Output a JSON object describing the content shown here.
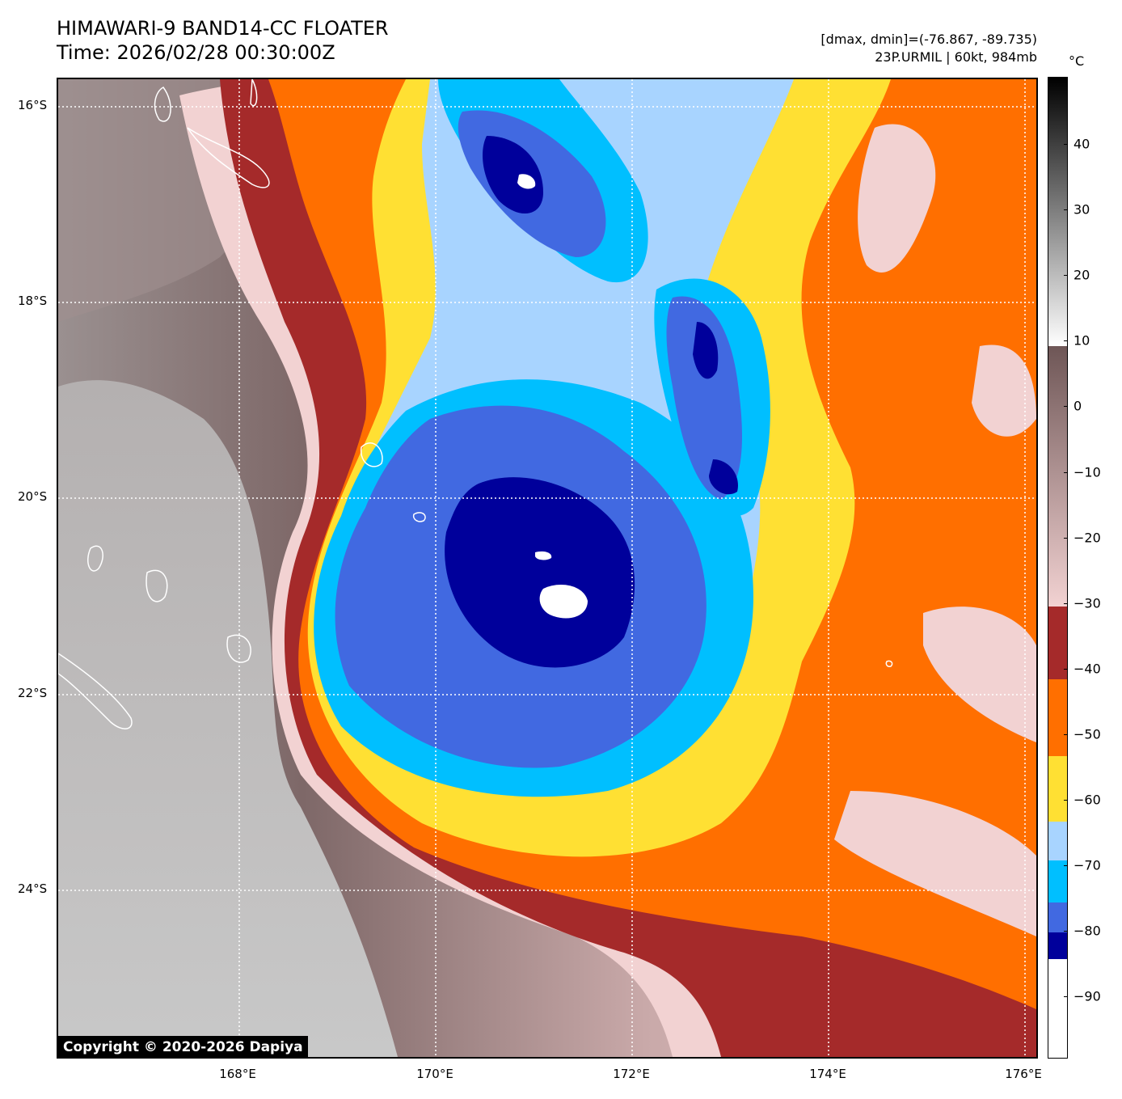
{
  "header": {
    "title_line1": "HIMAWARI-9 BAND14-CC FLOATER",
    "title_line2": "Time: 2026/02/28 00:30:00Z",
    "range_text": "[dmax, dmin]=(-76.867, -89.735)",
    "storm_text": "23P.URMIL | 60kt, 984mb"
  },
  "map": {
    "lat_labels": [
      "16°S",
      "18°S",
      "20°S",
      "22°S",
      "24°S"
    ],
    "lon_labels": [
      "168°E",
      "170°E",
      "172°E",
      "174°E",
      "176°E"
    ],
    "copyright": "Copyright © 2020-2026 Dapiya"
  },
  "colorbar": {
    "unit": "°C",
    "ticks": [
      "40",
      "30",
      "20",
      "10",
      "0",
      "−10",
      "−20",
      "−30",
      "−40",
      "−50",
      "−60",
      "−70",
      "−80",
      "−90"
    ],
    "colors": {
      "warm_top": "#000000",
      "warm_mid": "#ffffff",
      "brown": "#6e5656",
      "pink": "#f2d2d2",
      "dark_red": "#a52a2a",
      "orange": "#ff6f00",
      "yellow": "#ffe033",
      "light_blue": "#a8d4ff",
      "sky_blue": "#00bfff",
      "royal_blue": "#4169e1",
      "navy": "#00009b",
      "white": "#ffffff"
    }
  }
}
